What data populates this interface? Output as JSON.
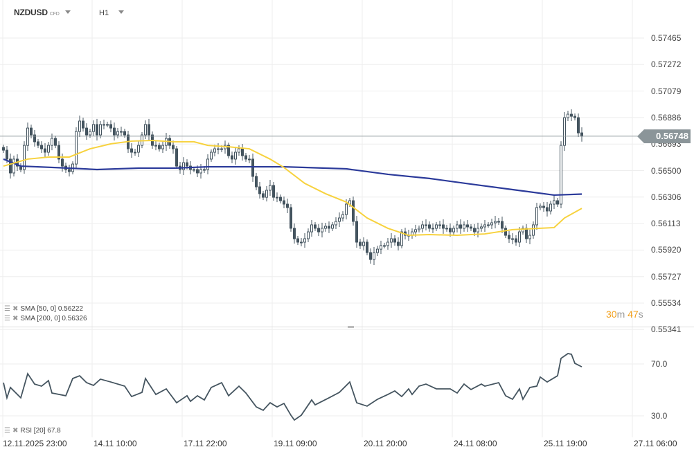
{
  "header": {
    "symbol": "NZDUSD",
    "instrument_type": "CFD",
    "timeframe": "H1"
  },
  "price_axis": [
    "0.57465",
    "0.57272",
    "0.57079",
    "0.56886",
    "0.56693",
    "0.56500",
    "0.56306",
    "0.56113",
    "0.55920",
    "0.55727",
    "0.55534",
    "0.55341"
  ],
  "current_price": "0.56748",
  "countdown": {
    "minutes": "30",
    "minutes_unit": "m",
    "seconds": "47",
    "seconds_unit": "s"
  },
  "indicators": {
    "sma50": {
      "label": "SMA [50, 0] 0.56222",
      "color": "#f7d23e"
    },
    "sma200": {
      "label": "SMA [200, 0] 0.56326",
      "color": "#2b3a9a"
    },
    "rsi": {
      "label": "RSI [20] 67.8",
      "color": "#44545f"
    }
  },
  "rsi_axis": [
    "70.0",
    "30.0"
  ],
  "time_axis": [
    "12.11.2025  23:00",
    "14.11  10:00",
    "17.11  22:00",
    "19.11  09:00",
    "20.11  20:00",
    "24.11  08:00",
    "25.11  19:00",
    "27.11  06:00"
  ],
  "colors": {
    "candle": "#44545f",
    "grid": "#eeeeee",
    "price_line": "#8b9599",
    "countdown": "#f2a01c"
  },
  "chart_data": {
    "type": "candlestick",
    "closes": [
      0.56646,
      0.56581,
      0.5648,
      0.56581,
      0.5653,
      0.56505,
      0.56681,
      0.56807,
      0.56757,
      0.56707,
      0.56681,
      0.56656,
      0.56631,
      0.56681,
      0.56732,
      0.56681,
      0.56581,
      0.5653,
      0.56505,
      0.5649,
      0.56545,
      0.56782,
      0.56858,
      0.56807,
      0.56757,
      0.56782,
      0.56833,
      0.56757,
      0.56833,
      0.56833,
      0.56833,
      0.56807,
      0.56757,
      0.56782,
      0.56782,
      0.56757,
      0.56656,
      0.56631,
      0.56631,
      0.56681,
      0.56757,
      0.56833,
      0.56757,
      0.56681,
      0.56681,
      0.56656,
      0.56681,
      0.56732,
      0.56681,
      0.56656,
      0.5653,
      0.56505,
      0.56555,
      0.5653,
      0.56505,
      0.56505,
      0.5648,
      0.56505,
      0.56505,
      0.56581,
      0.56631,
      0.56656,
      0.56656,
      0.56656,
      0.56681,
      0.56606,
      0.56581,
      0.56631,
      0.56656,
      0.56606,
      0.56581,
      0.56581,
      0.56455,
      0.56379,
      0.56329,
      0.56303,
      0.56354,
      0.56389,
      0.56303,
      0.56303,
      0.56278,
      0.56253,
      0.56228,
      0.56077,
      0.56001,
      0.55976,
      0.55976,
      0.56001,
      0.56051,
      0.56102,
      0.56077,
      0.56051,
      0.56077,
      0.56092,
      0.56077,
      0.56102,
      0.56127,
      0.56152,
      0.56177,
      0.56253,
      0.56278,
      0.56127,
      0.55976,
      0.55951,
      0.55976,
      0.559,
      0.5585,
      0.559,
      0.55925,
      0.55951,
      0.55951,
      0.55976,
      0.56001,
      0.55976,
      0.55951,
      0.56051,
      0.56026,
      0.56026,
      0.56051,
      0.56067,
      0.56077,
      0.56102,
      0.56102,
      0.56077,
      0.56077,
      0.56102,
      0.56102,
      0.56077,
      0.56077,
      0.56051,
      0.56077,
      0.56102,
      0.56077,
      0.56102,
      0.56087,
      0.56077,
      0.56051,
      0.56077,
      0.56087,
      0.56102,
      0.56102,
      0.56117,
      0.56127,
      0.56127,
      0.56077,
      0.56026,
      0.56001,
      0.56001,
      0.55976,
      0.56051,
      0.56077,
      0.56001,
      0.56026,
      0.56102,
      0.56228,
      0.56238,
      0.56228,
      0.56203,
      0.56253,
      0.56278,
      0.56253,
      0.56681,
      0.56883,
      0.56908,
      0.56893,
      0.56883,
      0.56772,
      0.56748
    ],
    "sma50": [
      [
        0,
        0.5653
      ],
      [
        7,
        0.56581
      ],
      [
        13,
        0.56596
      ],
      [
        19,
        0.56596
      ],
      [
        25,
        0.56656
      ],
      [
        31,
        0.56692
      ],
      [
        37,
        0.56712
      ],
      [
        43,
        0.56717
      ],
      [
        49,
        0.56707
      ],
      [
        55,
        0.56707
      ],
      [
        59,
        0.56681
      ],
      [
        65,
        0.56671
      ],
      [
        71,
        0.56656
      ],
      [
        77,
        0.56581
      ],
      [
        81,
        0.5652
      ],
      [
        87,
        0.56404
      ],
      [
        93,
        0.56329
      ],
      [
        99,
        0.56268
      ],
      [
        105,
        0.56152
      ],
      [
        111,
        0.56077
      ],
      [
        117,
        0.56026
      ],
      [
        123,
        0.56031
      ],
      [
        131,
        0.56026
      ],
      [
        139,
        0.56036
      ],
      [
        147,
        0.56067
      ],
      [
        155,
        0.56077
      ],
      [
        159,
        0.56082
      ],
      [
        162,
        0.56152
      ],
      [
        167,
        0.56222
      ]
    ],
    "sma200": [
      [
        0,
        0.56581
      ],
      [
        5,
        0.5653
      ],
      [
        19,
        0.56515
      ],
      [
        27,
        0.56505
      ],
      [
        39,
        0.56515
      ],
      [
        49,
        0.56515
      ],
      [
        59,
        0.56525
      ],
      [
        71,
        0.56525
      ],
      [
        81,
        0.56525
      ],
      [
        87,
        0.5652
      ],
      [
        99,
        0.5651
      ],
      [
        111,
        0.5647
      ],
      [
        123,
        0.5644
      ],
      [
        135,
        0.56399
      ],
      [
        147,
        0.56359
      ],
      [
        159,
        0.56319
      ],
      [
        167,
        0.56326
      ]
    ],
    "rsi": [
      [
        0,
        55.6
      ],
      [
        1,
        43.9
      ],
      [
        2,
        51.9
      ],
      [
        5,
        43.9
      ],
      [
        7,
        62.5
      ],
      [
        9,
        54.5
      ],
      [
        11,
        52.9
      ],
      [
        13,
        57.2
      ],
      [
        14,
        47.6
      ],
      [
        18,
        45.5
      ],
      [
        20,
        58.8
      ],
      [
        22,
        60.9
      ],
      [
        24,
        55.6
      ],
      [
        26,
        53.5
      ],
      [
        28,
        58.3
      ],
      [
        31,
        56.1
      ],
      [
        35,
        52.9
      ],
      [
        37,
        44.9
      ],
      [
        40,
        48.1
      ],
      [
        41,
        58.8
      ],
      [
        44,
        46.5
      ],
      [
        47,
        50.8
      ],
      [
        50,
        40.1
      ],
      [
        53,
        45.5
      ],
      [
        54,
        41.2
      ],
      [
        56,
        45.5
      ],
      [
        58,
        42.3
      ],
      [
        60,
        51.9
      ],
      [
        63,
        55.6
      ],
      [
        65,
        45.5
      ],
      [
        68,
        52.9
      ],
      [
        70,
        47.6
      ],
      [
        73,
        36.9
      ],
      [
        75,
        34.3
      ],
      [
        77,
        40.1
      ],
      [
        79,
        36.9
      ],
      [
        81,
        39.6
      ],
      [
        83,
        30.5
      ],
      [
        84,
        26.8
      ],
      [
        86,
        30.5
      ],
      [
        89,
        42.3
      ],
      [
        90,
        38.5
      ],
      [
        94,
        43.9
      ],
      [
        97,
        48.1
      ],
      [
        100,
        56.1
      ],
      [
        102,
        40.1
      ],
      [
        105,
        37.5
      ],
      [
        108,
        42.8
      ],
      [
        111,
        46.5
      ],
      [
        113,
        49.2
      ],
      [
        115,
        44.9
      ],
      [
        117,
        50.8
      ],
      [
        118,
        46.5
      ],
      [
        120,
        52.9
      ],
      [
        122,
        54.5
      ],
      [
        125,
        50.8
      ],
      [
        129,
        50.8
      ],
      [
        131,
        47.6
      ],
      [
        133,
        54.5
      ],
      [
        135,
        50.3
      ],
      [
        138,
        54.5
      ],
      [
        139,
        52.9
      ],
      [
        143,
        55.6
      ],
      [
        145,
        45.5
      ],
      [
        147,
        42.8
      ],
      [
        149,
        50.8
      ],
      [
        150,
        42.8
      ],
      [
        152,
        51.9
      ],
      [
        154,
        52.9
      ],
      [
        155,
        59.9
      ],
      [
        157,
        56.1
      ],
      [
        160,
        60.9
      ],
      [
        161,
        74.3
      ],
      [
        163,
        78.0
      ],
      [
        164,
        77.5
      ],
      [
        165,
        70.5
      ],
      [
        167,
        67.8
      ]
    ],
    "rsi_levels": [
      70,
      30
    ]
  }
}
